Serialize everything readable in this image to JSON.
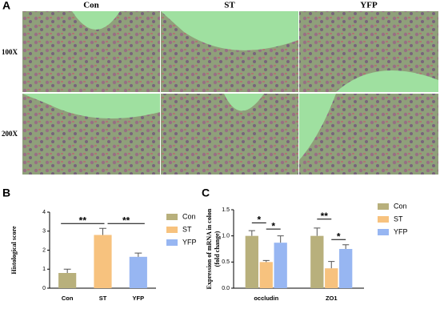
{
  "figure": {
    "panel_labels": [
      "A",
      "B",
      "C"
    ],
    "columns": [
      "Con",
      "ST",
      "YFP"
    ],
    "rows": [
      "100X",
      "200X"
    ]
  },
  "chart_data": [
    {
      "type": "bar",
      "ylabel": [
        "Histological score"
      ],
      "categories": [
        "Con",
        "ST",
        "YFP"
      ],
      "values": [
        0.8,
        2.8,
        1.65
      ],
      "errors": [
        0.2,
        0.35,
        0.2
      ],
      "colors": [
        "#b8b07c",
        "#f7c27e",
        "#97b6f2"
      ],
      "ylim": [
        0,
        4
      ],
      "yticks": [
        0,
        1,
        2,
        3,
        4
      ],
      "annotations": [
        "**",
        "**"
      ]
    },
    {
      "type": "bar",
      "ylabel": [
        "Expression of mRNA in colon",
        "(fold change)"
      ],
      "categories": [
        "occludin",
        "ZO1"
      ],
      "series": [
        {
          "name": "Con",
          "color": "#b8b07c",
          "values": [
            1.0,
            1.0
          ],
          "errors": [
            0.1,
            0.15
          ]
        },
        {
          "name": "ST",
          "color": "#f7c27e",
          "values": [
            0.5,
            0.38
          ],
          "errors": [
            0.03,
            0.13
          ]
        },
        {
          "name": "YFP",
          "color": "#97b6f2",
          "values": [
            0.87,
            0.75
          ],
          "errors": [
            0.13,
            0.08
          ]
        }
      ],
      "ylim": [
        0,
        1.5
      ],
      "yticks": [
        {
          "value": 0,
          "label": "0.0"
        },
        {
          "value": 0.5,
          "label": "0.5"
        },
        {
          "value": 1,
          "label": "1.0"
        },
        {
          "value": 1.5,
          "label": "1.5"
        }
      ],
      "annotations": [
        "*",
        "*",
        "**",
        "*"
      ]
    }
  ]
}
